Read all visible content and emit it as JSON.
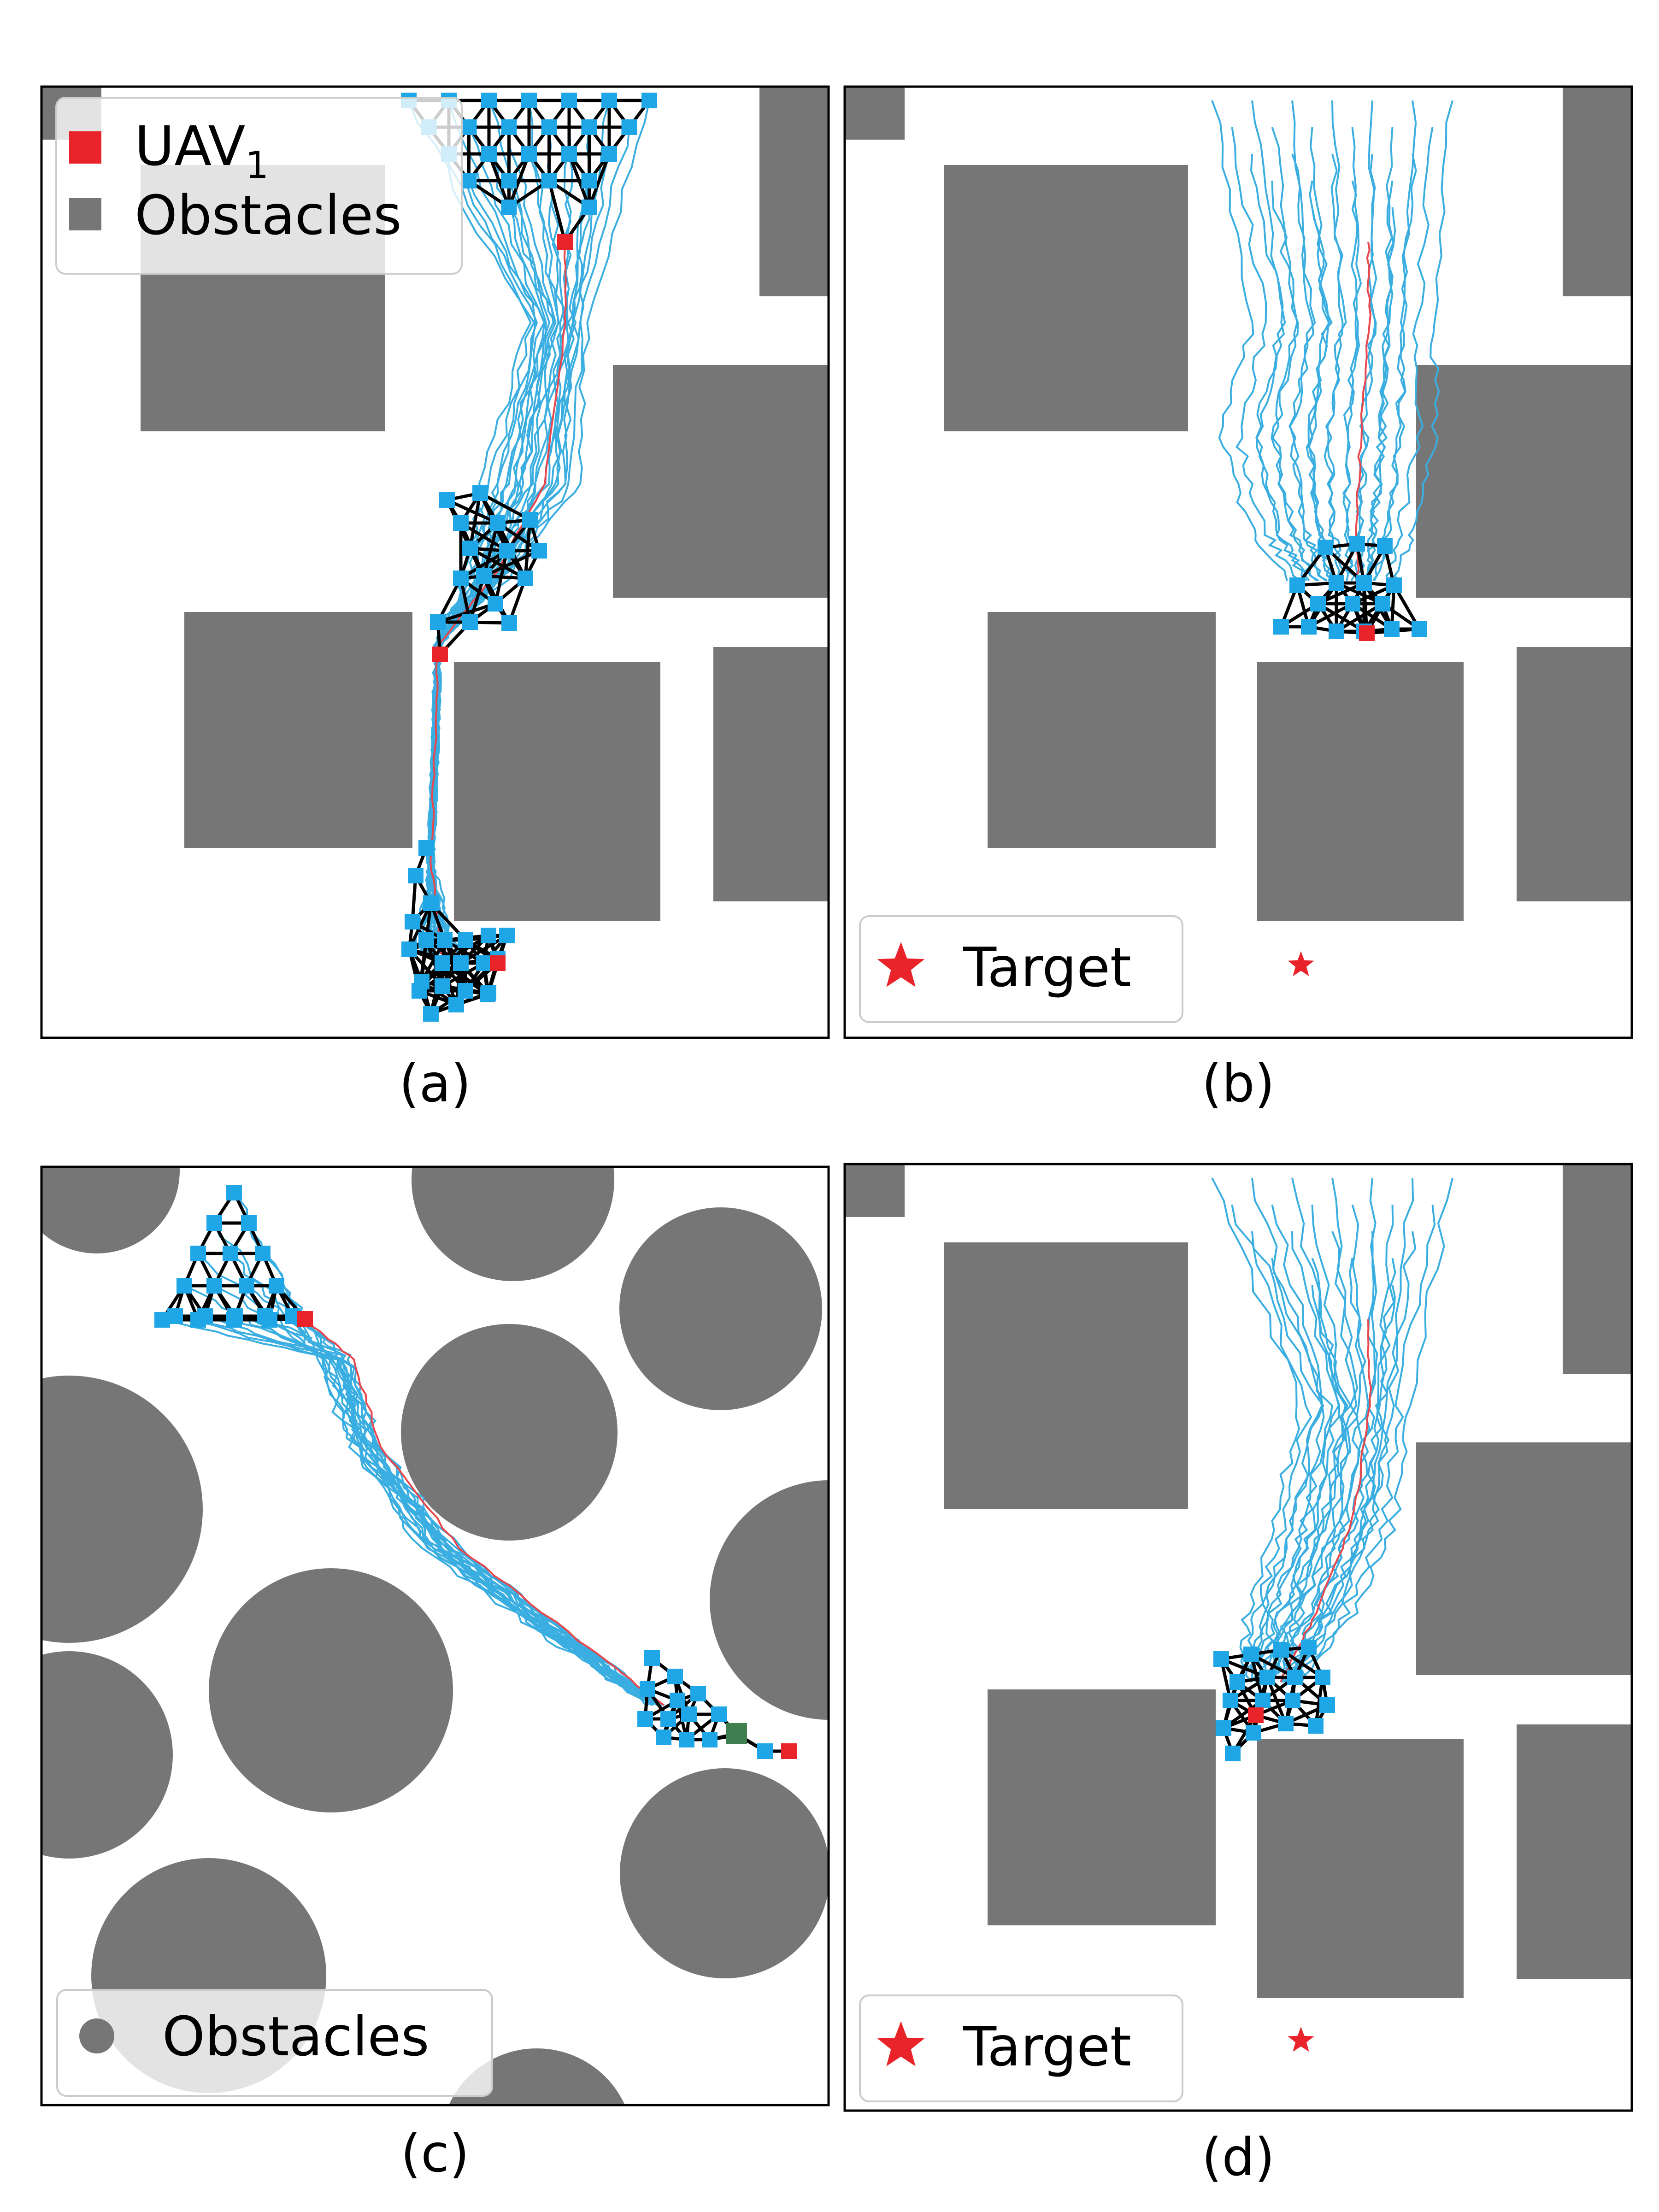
{
  "captions": [
    "(a)",
    "(b)",
    "(c)",
    "(d)"
  ],
  "legend_a": {
    "uav_label": "UAV",
    "uav_subscript": "1",
    "obstacles_label": "Obstacles"
  },
  "legend_b": {
    "target_label": "Target"
  },
  "legend_c": {
    "obstacles_label": "Obstacles"
  },
  "legend_d": {
    "target_label": "Target"
  },
  "colors": {
    "obstacle": "#767676",
    "uav_follower": "#1ea6e6",
    "uav_leader": "#e8232a",
    "trajectory": "#3aaee0",
    "leader_trajectory": "#e8474d",
    "target": "#e8232a",
    "green_marker": "#3f7f4f"
  }
}
